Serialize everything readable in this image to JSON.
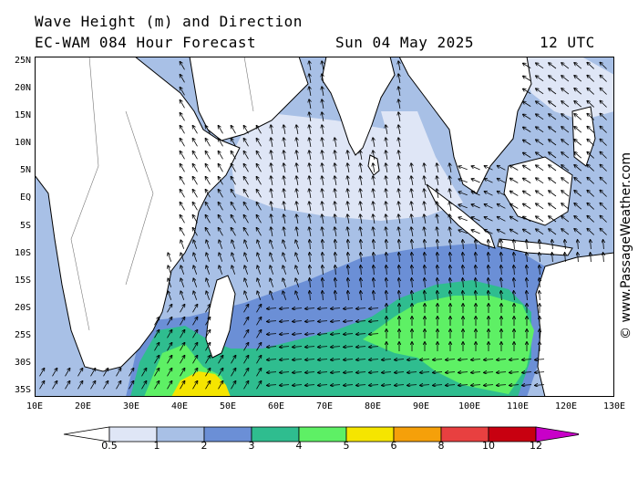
{
  "header": {
    "title": "Wave Height (m) and Direction",
    "model": "EC-WAM 084 Hour Forecast",
    "date": "Sun 04 May 2025",
    "time": "12 UTC"
  },
  "watermark": "© www.PassageWeather.com",
  "axes": {
    "lat_labels": [
      "25N",
      "20N",
      "15N",
      "10N",
      "5N",
      "EQ",
      "5S",
      "10S",
      "15S",
      "20S",
      "25S",
      "30S",
      "35S"
    ],
    "lon_labels": [
      "10E",
      "20E",
      "30E",
      "40E",
      "50E",
      "60E",
      "70E",
      "80E",
      "90E",
      "100E",
      "110E",
      "120E",
      "130E"
    ]
  },
  "legend": {
    "labels": [
      "0.5",
      "1",
      "2",
      "3",
      "4",
      "5",
      "6",
      "8",
      "10",
      "12"
    ],
    "colors": [
      "#ffffff",
      "#dfe6f6",
      "#a8c0e6",
      "#6b8fd6",
      "#2fbd8f",
      "#5ef065",
      "#f5e500",
      "#f5a00a",
      "#e84040",
      "#c80010",
      "#c800c8"
    ]
  },
  "colors": {
    "land": "#ffffff",
    "coast": "#000000",
    "arrow": "#000000"
  }
}
